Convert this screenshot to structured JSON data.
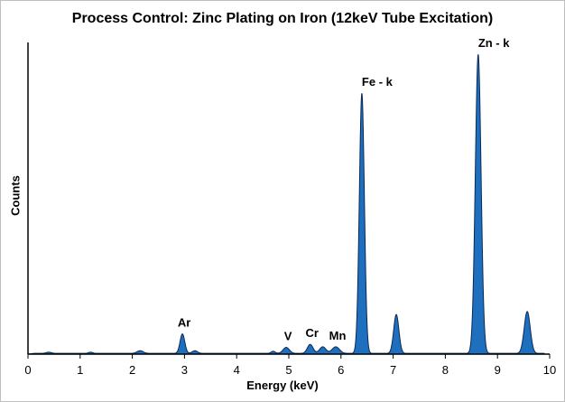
{
  "chart_data": {
    "type": "area",
    "title": "Process Control: Zinc Plating on Iron (12keV Tube Excitation)",
    "xlabel": "Energy (keV)",
    "ylabel": "Counts",
    "xlim": [
      0,
      10
    ],
    "ylim": [
      0,
      100
    ],
    "x_ticks": [
      "0",
      "1",
      "2",
      "3",
      "4",
      "5",
      "6",
      "7",
      "8",
      "9",
      "10"
    ],
    "grid": false,
    "fill_color": "#1f6fbf",
    "line_color": "#0a2a55",
    "peaks": [
      {
        "label": "",
        "x": 0.4,
        "height": 0.4,
        "width": 0.05
      },
      {
        "label": "",
        "x": 1.2,
        "height": 0.4,
        "width": 0.04
      },
      {
        "label": "",
        "x": 2.15,
        "height": 0.9,
        "width": 0.06
      },
      {
        "label": "Ar",
        "x": 2.96,
        "height": 6.5,
        "width": 0.045
      },
      {
        "label": "",
        "x": 3.2,
        "height": 0.9,
        "width": 0.05
      },
      {
        "label": "",
        "x": 4.7,
        "height": 0.7,
        "width": 0.04
      },
      {
        "label": "V",
        "x": 4.95,
        "height": 2.0,
        "width": 0.06
      },
      {
        "label": "Cr",
        "x": 5.41,
        "height": 3.0,
        "width": 0.055
      },
      {
        "label": "",
        "x": 5.65,
        "height": 2.2,
        "width": 0.06
      },
      {
        "label": "Mn",
        "x": 5.9,
        "height": 2.2,
        "width": 0.07
      },
      {
        "label": "Fe - k",
        "x": 6.4,
        "height": 87.0,
        "width": 0.048
      },
      {
        "label": "",
        "x": 7.06,
        "height": 13.0,
        "width": 0.05
      },
      {
        "label": "Zn - k",
        "x": 8.63,
        "height": 100.0,
        "width": 0.055
      },
      {
        "label": "",
        "x": 9.57,
        "height": 14.0,
        "width": 0.058
      }
    ]
  }
}
